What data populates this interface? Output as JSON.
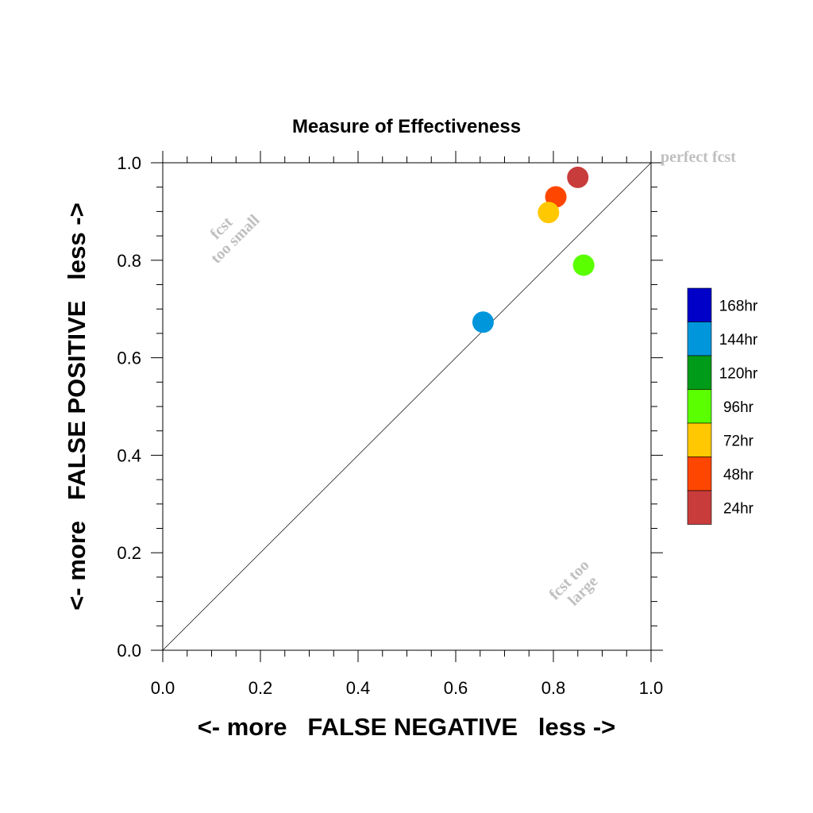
{
  "chart_data": {
    "type": "scatter",
    "title": "Measure of Effectiveness",
    "xlabel": "<- more   FALSE NEGATIVE   less ->",
    "ylabel": "<- more   FALSE POSITIVE   less ->",
    "xlim": [
      0.0,
      1.0
    ],
    "ylim": [
      0.0,
      1.0
    ],
    "xticks": [
      "0.0",
      "0.2",
      "0.4",
      "0.6",
      "0.8",
      "1.0"
    ],
    "yticks": [
      "0.0",
      "0.2",
      "0.4",
      "0.6",
      "0.8",
      "1.0"
    ],
    "grid": false,
    "reference_line": "diagonal y = x",
    "annotations": {
      "top_left": [
        "fcst",
        "too small"
      ],
      "bottom_right": [
        "fcst too",
        "large"
      ],
      "corner": "perfect fcst"
    },
    "legend": {
      "placement": "right",
      "entries": [
        {
          "label": "168hr",
          "color": "#0000c8"
        },
        {
          "label": "144hr",
          "color": "#0096dc"
        },
        {
          "label": "120hr",
          "color": "#009b19"
        },
        {
          "label": "96hr",
          "color": "#5aff00"
        },
        {
          "label": "72hr",
          "color": "#ffc800"
        },
        {
          "label": "48hr",
          "color": "#ff4600"
        },
        {
          "label": "24hr",
          "color": "#c83c3c"
        }
      ]
    },
    "points": [
      {
        "label": "24hr",
        "x": 0.85,
        "y": 0.97,
        "color": "#c83c3c"
      },
      {
        "label": "48hr",
        "x": 0.805,
        "y": 0.93,
        "color": "#ff4600"
      },
      {
        "label": "72hr",
        "x": 0.79,
        "y": 0.898,
        "color": "#ffc800"
      },
      {
        "label": "96hr",
        "x": 0.862,
        "y": 0.79,
        "color": "#5aff00"
      },
      {
        "label": "144hr",
        "x": 0.656,
        "y": 0.673,
        "color": "#0096dc"
      }
    ]
  }
}
